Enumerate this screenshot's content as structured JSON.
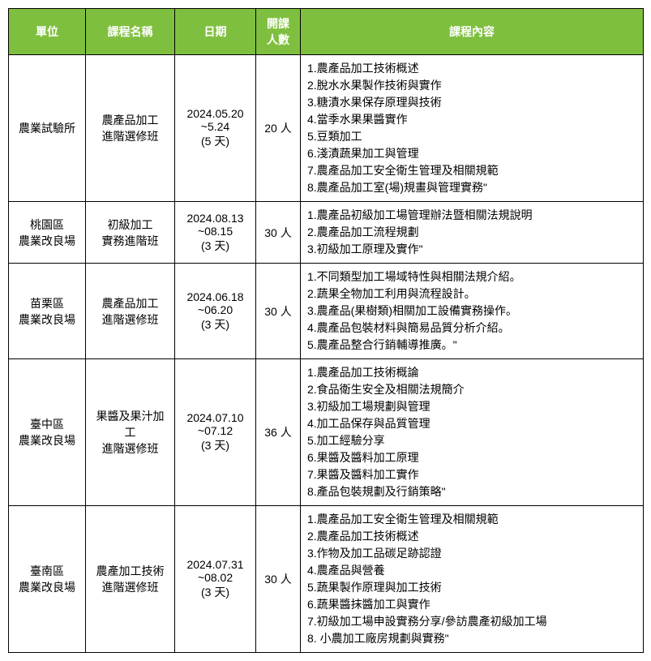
{
  "header_bg": "#7fbf3f",
  "header_fg": "#ffffff",
  "columns": {
    "unit": "單位",
    "course": "課程名稱",
    "date": "日期",
    "people": "開課\n人數",
    "content": "課程內容"
  },
  "rows": [
    {
      "unit": "農業試驗所",
      "course": "農產品加工\n進階選修班",
      "date": "2024.05.20\n~5.24\n(5 天)",
      "people": "20 人",
      "content": "1.農產品加工技術概述\n2.脫水水果製作技術與實作\n3.糖漬水果保存原理與技術\n4.當季水果果醬實作\n5.豆類加工\n6.淺漬蔬果加工與管理\n7.農產品加工安全衛生管理及相關規範\n8.農產品加工室(場)規畫與管理實務\""
    },
    {
      "unit": "桃園區\n農業改良場",
      "course": "初級加工\n實務進階班",
      "date": "2024.08.13\n~08.15\n(3 天)",
      "people": "30 人",
      "content": "1.農產品初級加工場管理辦法暨相關法規說明\n2.農產品加工流程規劃\n3.初級加工原理及實作\""
    },
    {
      "unit": "苗栗區\n農業改良場",
      "course": "農產品加工\n進階選修班",
      "date": "2024.06.18\n~06.20\n(3 天)",
      "people": "30 人",
      "content": "1.不同類型加工場域特性與相關法規介紹。\n2.蔬果全物加工利用與流程設計。\n3.農產品(果樹類)相關加工設備實務操作。\n4.農產品包裝材料與簡易品質分析介紹。\n5.農產品整合行銷輔導推廣。\""
    },
    {
      "unit": "臺中區\n農業改良場",
      "course": "果醬及果汁加工\n進階選修班",
      "date": "2024.07.10\n~07.12\n(3 天)",
      "people": "36 人",
      "content": "1.農產品加工技術概論\n2.食品衛生安全及相關法規簡介\n3.初級加工場規劃與管理\n4.加工品保存與品質管理\n5.加工經驗分享\n6.果醬及醬料加工原理\n7.果醬及醬料加工實作\n8.產品包裝規劃及行銷策略\""
    },
    {
      "unit": "臺南區\n農業改良場",
      "course": "農產加工技術\n進階選修班",
      "date": "2024.07.31\n~08.02\n(3 天)",
      "people": "30 人",
      "content": "1.農產品加工安全衛生管理及相關規範\n2.農產品加工技術概述\n3.作物及加工品碳足跡認證\n4.農產品與營養\n5.蔬果製作原理與加工技術\n6.蔬果醬抹醬加工與實作\n7.初級加工場申設實務分享/參訪農產初級加工場\n8. 小農加工廠房規劃與實務\""
    }
  ]
}
